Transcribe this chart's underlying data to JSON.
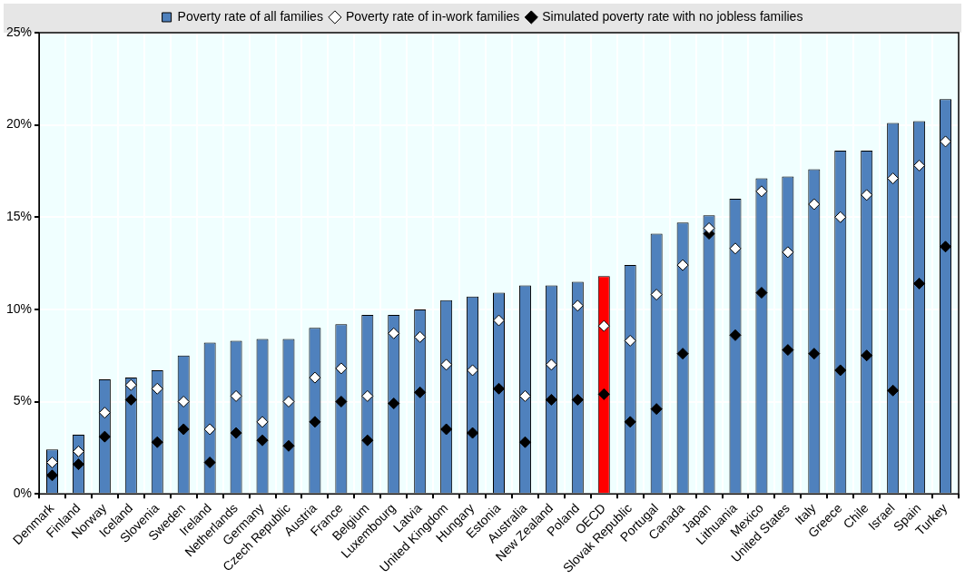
{
  "chart_data": {
    "type": "bar",
    "categories": [
      "Denmark",
      "Finland",
      "Norway",
      "Iceland",
      "Slovenia",
      "Sweden",
      "Ireland",
      "Netherlands",
      "Germany",
      "Czech Republic",
      "Austria",
      "France",
      "Belgium",
      "Luxembourg",
      "Latvia",
      "United Kingdom",
      "Hungary",
      "Estonia",
      "Australia",
      "New Zealand",
      "Poland",
      "OECD",
      "Slovak Republic",
      "Portugal",
      "Canada",
      "Japan",
      "Lithuania",
      "Mexico",
      "United States",
      "Italy",
      "Greece",
      "Chile",
      "Israel",
      "Spain",
      "Turkey"
    ],
    "series": [
      {
        "name": "Poverty rate of all families",
        "color": "#4f81bd",
        "colors": [
          "#4f81bd",
          "#4f81bd",
          "#4f81bd",
          "#4f81bd",
          "#4f81bd",
          "#4f81bd",
          "#4f81bd",
          "#4f81bd",
          "#4f81bd",
          "#4f81bd",
          "#4f81bd",
          "#4f81bd",
          "#4f81bd",
          "#4f81bd",
          "#4f81bd",
          "#4f81bd",
          "#4f81bd",
          "#4f81bd",
          "#4f81bd",
          "#4f81bd",
          "#4f81bd",
          "#ff0000",
          "#4f81bd",
          "#4f81bd",
          "#4f81bd",
          "#4f81bd",
          "#4f81bd",
          "#4f81bd",
          "#4f81bd",
          "#4f81bd",
          "#4f81bd",
          "#4f81bd",
          "#4f81bd",
          "#4f81bd",
          "#4f81bd"
        ],
        "values": [
          2.4,
          3.2,
          6.2,
          6.3,
          6.7,
          7.5,
          8.2,
          8.3,
          8.4,
          8.4,
          9.0,
          9.2,
          9.7,
          9.7,
          10.0,
          10.5,
          10.7,
          10.9,
          11.3,
          11.3,
          11.5,
          11.8,
          12.4,
          14.1,
          14.7,
          15.1,
          16.0,
          17.1,
          17.2,
          17.6,
          18.6,
          18.6,
          20.1,
          20.2,
          21.4
        ]
      },
      {
        "name": "Poverty rate of in-work families",
        "type": "scatter",
        "color": "#ffffff",
        "x": [
          "Denmark",
          "Finland",
          "Norway",
          "Iceland",
          "Slovenia",
          "Sweden",
          "Ireland",
          "Netherlands",
          "Germany",
          "Czech Republic",
          "Austria",
          "France",
          "Belgium",
          "Luxembourg",
          "Latvia",
          "United Kingdom",
          "Hungary",
          "Estonia",
          "Australia",
          "New Zealand",
          "Poland",
          "OECD",
          "Slovak Republic",
          "Portugal",
          "Canada",
          "Japan",
          "Lithuania",
          "Mexico",
          "United States",
          "Italy",
          "Greece",
          "Chile",
          "Israel",
          "Spain",
          "Turkey"
        ],
        "values": [
          1.7,
          2.3,
          4.4,
          5.9,
          5.7,
          5.0,
          3.5,
          5.3,
          3.9,
          5.0,
          6.3,
          6.8,
          5.3,
          8.7,
          8.5,
          7.0,
          6.7,
          9.4,
          5.3,
          7.0,
          10.2,
          9.1,
          8.3,
          10.8,
          12.4,
          14.4,
          13.3,
          16.4,
          13.1,
          15.7,
          15.0,
          16.2,
          17.1,
          17.8,
          19.1
        ]
      },
      {
        "name": "Simulated poverty rate with no jobless families",
        "type": "scatter",
        "color": "#000000",
        "x": [
          "Denmark",
          "Finland",
          "Norway",
          "Iceland",
          "Slovenia",
          "Sweden",
          "Ireland",
          "Netherlands",
          "Germany",
          "Czech Republic",
          "Austria",
          "France",
          "Belgium",
          "Luxembourg",
          "Latvia",
          "United Kingdom",
          "Hungary",
          "Estonia",
          "Australia",
          "New Zealand",
          "Poland",
          "OECD",
          "Slovak Republic",
          "Portugal",
          "Canada",
          "Japan",
          "Lithuania",
          "Mexico",
          "United States",
          "Italy",
          "Greece",
          "Chile",
          "Israel",
          "Spain",
          "Turkey"
        ],
        "values": [
          1.0,
          1.6,
          3.1,
          5.1,
          2.8,
          3.5,
          1.7,
          3.3,
          2.9,
          2.6,
          3.9,
          5.0,
          2.9,
          4.9,
          5.5,
          3.5,
          3.3,
          5.7,
          2.8,
          5.1,
          5.1,
          5.4,
          3.9,
          4.6,
          7.6,
          14.1,
          8.6,
          10.9,
          7.8,
          7.6,
          6.7,
          7.5,
          5.6,
          11.4,
          13.4
        ]
      }
    ],
    "ylim": [
      0,
      25
    ],
    "yticks": [
      {
        "value": 0,
        "label": "0%"
      },
      {
        "value": 5,
        "label": "5%"
      },
      {
        "value": 10,
        "label": "10%"
      },
      {
        "value": 15,
        "label": "15%"
      },
      {
        "value": 20,
        "label": "20%"
      },
      {
        "value": 25,
        "label": "25%"
      }
    ],
    "grid": true,
    "legend": "top",
    "marker": "diamond"
  }
}
